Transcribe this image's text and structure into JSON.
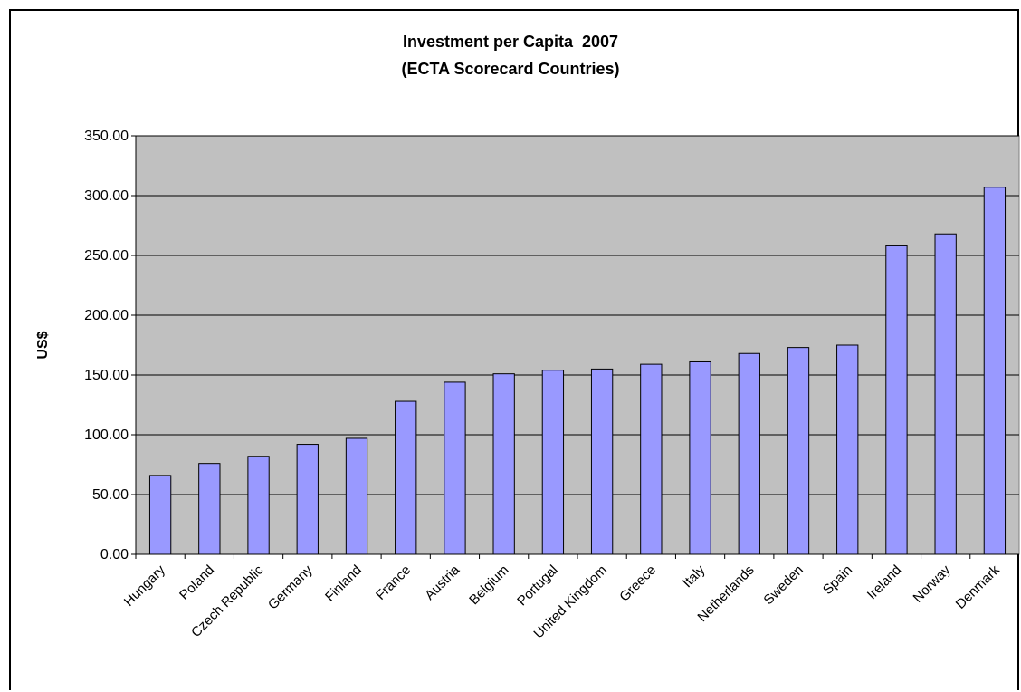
{
  "chart_data": {
    "type": "bar",
    "title": "Investment per Capita  2007",
    "subtitle": "(ECTA Scorecard Countries)",
    "xlabel": "",
    "ylabel": "US$",
    "ylim": [
      0,
      350
    ],
    "yticks": [
      "0.00",
      "50.00",
      "100.00",
      "150.00",
      "200.00",
      "250.00",
      "300.00",
      "350.00"
    ],
    "grid": true,
    "bar_color": "#9999ff",
    "plot_background": "#c0c0c0",
    "categories": [
      "Hungary",
      "Poland",
      "Czech Republic",
      "Germany",
      "Finland",
      "France",
      "Austria",
      "Belgium",
      "Portugal",
      "United Kingdom",
      "Greece",
      "Italy",
      "Netherlands",
      "Sweden",
      "Spain",
      "Ireland",
      "Norway",
      "Denmark"
    ],
    "values": [
      66,
      76,
      82,
      92,
      97,
      128,
      144,
      151,
      154,
      155,
      159,
      161,
      168,
      173,
      175,
      258,
      268,
      307
    ]
  }
}
